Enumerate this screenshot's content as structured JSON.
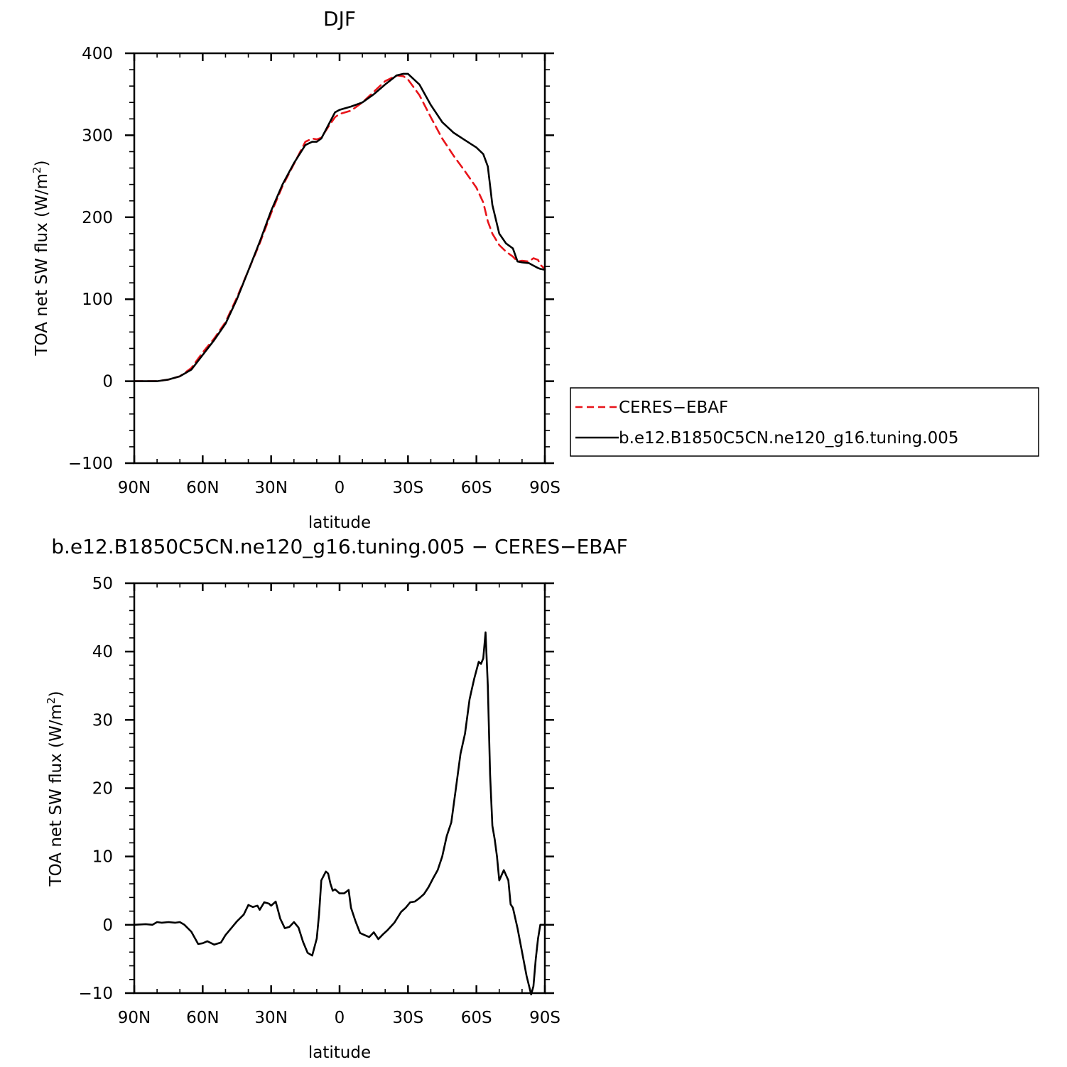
{
  "chart_data": [
    {
      "type": "line",
      "title": "DJF",
      "xlabel": "latitude",
      "ylabel": "TOA net SW flux (W/m",
      "ylabel_sup": "2",
      "ylabel_end": ")",
      "xlim": [
        -90,
        90
      ],
      "ylim": [
        -100,
        400
      ],
      "x_ticks": [
        -90,
        -60,
        -30,
        0,
        30,
        60,
        90
      ],
      "x_tick_labels": [
        "90N",
        "60N",
        "30N",
        "0",
        "30S",
        "60S",
        "90S"
      ],
      "y_ticks": [
        -100,
        0,
        100,
        200,
        300,
        400
      ],
      "y_tick_labels": [
        "−100",
        "0",
        "100",
        "200",
        "300",
        "400"
      ],
      "legend": {
        "placement": "right-outside",
        "entries": [
          "CERES−EBAF",
          "b.e12.B1850C5CN.ne120_g16.tuning.005"
        ]
      },
      "series": [
        {
          "name": "CERES−EBAF",
          "color": "#e8141a",
          "style": "dashed",
          "x": [
            -90,
            -85,
            -80,
            -75,
            -70,
            -65,
            -60,
            -55,
            -50,
            -45,
            -40,
            -35,
            -30,
            -25,
            -20,
            -15,
            -12,
            -10,
            -8,
            -5,
            -2,
            0,
            5,
            10,
            15,
            20,
            25,
            28,
            30,
            35,
            40,
            45,
            50,
            55,
            60,
            63,
            65,
            67,
            70,
            73,
            76,
            78,
            80,
            83,
            85,
            87,
            88,
            90
          ],
          "y": [
            0,
            0,
            0,
            2,
            6,
            16,
            35,
            52,
            72,
            102,
            135,
            168,
            205,
            238,
            265,
            292,
            296,
            295,
            297,
            310,
            322,
            326,
            330,
            340,
            353,
            366,
            373,
            372,
            368,
            349,
            322,
            296,
            275,
            256,
            236,
            218,
            195,
            180,
            166,
            158,
            152,
            146,
            147,
            146,
            150,
            148,
            142,
            137
          ]
        },
        {
          "name": "b.e12.B1850C5CN.ne120_g16.tuning.005",
          "color": "#000000",
          "style": "solid",
          "x": [
            -90,
            -85,
            -80,
            -75,
            -70,
            -65,
            -60,
            -55,
            -50,
            -45,
            -40,
            -35,
            -30,
            -25,
            -20,
            -15,
            -12,
            -10,
            -8,
            -5,
            -2,
            0,
            5,
            10,
            15,
            20,
            25,
            28,
            30,
            35,
            40,
            45,
            50,
            55,
            60,
            63,
            65,
            67,
            70,
            73,
            76,
            78,
            80,
            83,
            85,
            87,
            88,
            90
          ],
          "y": [
            0,
            0,
            0,
            2,
            6,
            14,
            32,
            50,
            70,
            100,
            135,
            170,
            208,
            240,
            266,
            288,
            292,
            292,
            296,
            312,
            328,
            331,
            335,
            340,
            350,
            362,
            373,
            375,
            375,
            362,
            337,
            316,
            303,
            294,
            285,
            277,
            262,
            215,
            180,
            168,
            162,
            146,
            145,
            144,
            141,
            138,
            137,
            136
          ]
        }
      ]
    },
    {
      "type": "line",
      "title": "b.e12.B1850C5CN.ne120_g16.tuning.005 − CERES−EBAF",
      "xlabel": "latitude",
      "ylabel": "TOA net SW flux (W/m",
      "ylabel_sup": "2",
      "ylabel_end": ")",
      "xlim": [
        -90,
        90
      ],
      "ylim": [
        -10,
        50
      ],
      "x_ticks": [
        -90,
        -60,
        -30,
        0,
        30,
        60,
        90
      ],
      "x_tick_labels": [
        "90N",
        "60N",
        "30N",
        "0",
        "30S",
        "60S",
        "90S"
      ],
      "y_ticks": [
        -10,
        0,
        10,
        20,
        30,
        40,
        50
      ],
      "y_tick_labels": [
        "−10",
        "0",
        "10",
        "20",
        "30",
        "40",
        "50"
      ],
      "series": [
        {
          "color": "#000000",
          "style": "solid",
          "x": [
            -90,
            -85,
            -82,
            -80,
            -78,
            -75,
            -72,
            -70,
            -68,
            -65,
            -62,
            -60,
            -58,
            -55,
            -52,
            -50,
            -47,
            -45,
            -42,
            -40,
            -38,
            -36,
            -35,
            -33,
            -31,
            -30,
            -28,
            -26,
            -24,
            -22,
            -20,
            -18,
            -16,
            -14,
            -12,
            -10,
            -9,
            -8,
            -6,
            -5,
            -4,
            -3,
            -2,
            0,
            2,
            4,
            5,
            7,
            9,
            11,
            13,
            15,
            17,
            19,
            21,
            24,
            27,
            29,
            31,
            33,
            35,
            37,
            39,
            41,
            43,
            45,
            47,
            49,
            51,
            53,
            55,
            57,
            58,
            59,
            61,
            62,
            63,
            64,
            65,
            66,
            67,
            68,
            69,
            70,
            72,
            74,
            75,
            76,
            78,
            80,
            82,
            84,
            85,
            86,
            87,
            88,
            89,
            90
          ],
          "y": [
            0,
            0.1,
            0,
            0.4,
            0.3,
            0.4,
            0.3,
            0.4,
            0,
            -1,
            -2.8,
            -2.7,
            -2.4,
            -2.9,
            -2.6,
            -1.5,
            -0.3,
            0.5,
            1.5,
            2.9,
            2.6,
            2.8,
            2.2,
            3.3,
            3.1,
            2.8,
            3.4,
            0.9,
            -0.5,
            -0.3,
            0.4,
            -0.4,
            -2.5,
            -4.1,
            -4.5,
            -2.0,
            1.5,
            6.5,
            7.8,
            7.5,
            6.0,
            5.0,
            5.2,
            4.6,
            4.6,
            5.1,
            2.5,
            0.5,
            -1.2,
            -1.5,
            -1.8,
            -1.1,
            -2.1,
            -1.4,
            -0.8,
            0.3,
            1.9,
            2.5,
            3.3,
            3.4,
            3.9,
            4.5,
            5.5,
            6.8,
            8.0,
            10.0,
            13.0,
            15.0,
            20.0,
            25.0,
            28.0,
            33.0,
            34.5,
            36.0,
            38.5,
            38.2,
            39.0,
            42.8,
            35.0,
            22.0,
            14.5,
            12.5,
            10.0,
            6.5,
            8.0,
            6.5,
            3.0,
            2.5,
            -0.5,
            -4.0,
            -7.5,
            -10.2,
            -9.0,
            -5.0,
            -2.0,
            0,
            0,
            0
          ]
        }
      ]
    }
  ]
}
